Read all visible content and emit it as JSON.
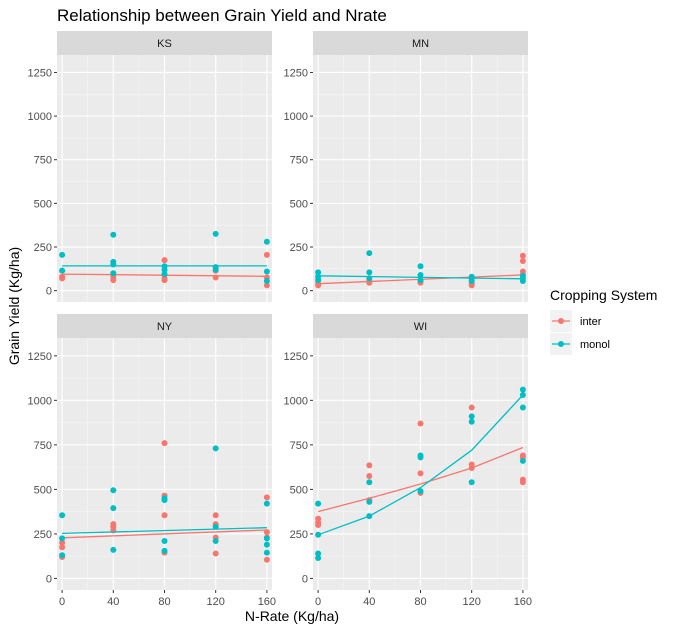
{
  "chart_data": {
    "type": "scatter",
    "title": "Relationship between Grain Yield and Nrate",
    "xlabel": "N-Rate (Kg/ha)",
    "ylabel": "Grain Yield (Kg/ha)",
    "x_ticks": [
      0,
      40,
      80,
      120,
      160
    ],
    "y_ticks": [
      0,
      250,
      500,
      750,
      1000,
      1250
    ],
    "xlim": [
      -4,
      164
    ],
    "ylim": [
      -65,
      1350
    ],
    "grid": true,
    "legend": {
      "title": "Cropping System",
      "position": "right",
      "entries": [
        {
          "name": "inter",
          "color": "#F8766D"
        },
        {
          "name": "monol",
          "color": "#00BFC4"
        }
      ]
    },
    "panels": [
      {
        "label": "KS",
        "series": [
          {
            "name": "inter",
            "color": "#F8766D",
            "points": [
              [
                0,
                70
              ],
              [
                0,
                80
              ],
              [
                40,
                60
              ],
              [
                40,
                75
              ],
              [
                40,
                90
              ],
              [
                80,
                60
              ],
              [
                80,
                70
              ],
              [
                80,
                90
              ],
              [
                80,
                175
              ],
              [
                120,
                75
              ],
              [
                120,
                115
              ],
              [
                160,
                30
              ],
              [
                160,
                75
              ],
              [
                160,
                205
              ]
            ],
            "trend": [
              [
                0,
                95
              ],
              [
                160,
                82
              ]
            ]
          },
          {
            "name": "monol",
            "color": "#00BFC4",
            "points": [
              [
                0,
                115
              ],
              [
                0,
                205
              ],
              [
                40,
                100
              ],
              [
                40,
                150
              ],
              [
                40,
                165
              ],
              [
                40,
                320
              ],
              [
                80,
                95
              ],
              [
                80,
                120
              ],
              [
                80,
                140
              ],
              [
                120,
                120
              ],
              [
                120,
                135
              ],
              [
                120,
                325
              ],
              [
                160,
                55
              ],
              [
                160,
                110
              ],
              [
                160,
                280
              ]
            ],
            "trend": [
              [
                0,
                142
              ],
              [
                160,
                142
              ]
            ]
          }
        ]
      },
      {
        "label": "MN",
        "series": [
          {
            "name": "inter",
            "color": "#F8766D",
            "points": [
              [
                0,
                30
              ],
              [
                0,
                40
              ],
              [
                40,
                45
              ],
              [
                40,
                55
              ],
              [
                80,
                45
              ],
              [
                80,
                55
              ],
              [
                120,
                30
              ],
              [
                120,
                40
              ],
              [
                120,
                70
              ],
              [
                160,
                90
              ],
              [
                160,
                110
              ],
              [
                160,
                170
              ],
              [
                160,
                200
              ]
            ],
            "trend": [
              [
                0,
                40
              ],
              [
                160,
                90
              ]
            ]
          },
          {
            "name": "monol",
            "color": "#00BFC4",
            "points": [
              [
                0,
                60
              ],
              [
                0,
                80
              ],
              [
                0,
                105
              ],
              [
                40,
                70
              ],
              [
                40,
                105
              ],
              [
                40,
                215
              ],
              [
                80,
                60
              ],
              [
                80,
                90
              ],
              [
                80,
                140
              ],
              [
                120,
                55
              ],
              [
                120,
                70
              ],
              [
                120,
                80
              ],
              [
                160,
                55
              ],
              [
                160,
                70
              ],
              [
                160,
                85
              ]
            ],
            "trend": [
              [
                0,
                85
              ],
              [
                160,
                68
              ]
            ]
          }
        ]
      },
      {
        "label": "NY",
        "series": [
          {
            "name": "inter",
            "color": "#F8766D",
            "points": [
              [
                0,
                120
              ],
              [
                0,
                175
              ],
              [
                0,
                200
              ],
              [
                40,
                270
              ],
              [
                40,
                290
              ],
              [
                40,
                305
              ],
              [
                80,
                145
              ],
              [
                80,
                355
              ],
              [
                80,
                465
              ],
              [
                80,
                760
              ],
              [
                120,
                140
              ],
              [
                120,
                230
              ],
              [
                120,
                305
              ],
              [
                120,
                355
              ],
              [
                160,
                105
              ],
              [
                160,
                230
              ],
              [
                160,
                260
              ],
              [
                160,
                455
              ]
            ],
            "trend": [
              [
                0,
                228
              ],
              [
                160,
                272
              ]
            ]
          },
          {
            "name": "monol",
            "color": "#00BFC4",
            "points": [
              [
                0,
                130
              ],
              [
                0,
                225
              ],
              [
                0,
                355
              ],
              [
                40,
                160
              ],
              [
                40,
                395
              ],
              [
                40,
                495
              ],
              [
                80,
                155
              ],
              [
                80,
                210
              ],
              [
                80,
                440
              ],
              [
                80,
                450
              ],
              [
                120,
                210
              ],
              [
                120,
                290
              ],
              [
                120,
                730
              ],
              [
                160,
                145
              ],
              [
                160,
                190
              ],
              [
                160,
                225
              ],
              [
                160,
                420
              ]
            ],
            "trend": [
              [
                0,
                253
              ],
              [
                160,
                285
              ]
            ]
          }
        ]
      },
      {
        "label": "WI",
        "series": [
          {
            "name": "inter",
            "color": "#F8766D",
            "points": [
              [
                0,
                300
              ],
              [
                0,
                315
              ],
              [
                0,
                335
              ],
              [
                40,
                440
              ],
              [
                40,
                575
              ],
              [
                40,
                635
              ],
              [
                80,
                480
              ],
              [
                80,
                590
              ],
              [
                80,
                870
              ],
              [
                120,
                620
              ],
              [
                120,
                640
              ],
              [
                120,
                960
              ],
              [
                160,
                540
              ],
              [
                160,
                555
              ],
              [
                160,
                680
              ],
              [
                160,
                690
              ]
            ],
            "trend": [
              [
                0,
                375
              ],
              [
                40,
                450
              ],
              [
                80,
                530
              ],
              [
                120,
                620
              ],
              [
                160,
                735
              ]
            ]
          },
          {
            "name": "monol",
            "color": "#00BFC4",
            "points": [
              [
                0,
                115
              ],
              [
                0,
                140
              ],
              [
                0,
                245
              ],
              [
                0,
                420
              ],
              [
                40,
                350
              ],
              [
                40,
                430
              ],
              [
                40,
                540
              ],
              [
                80,
                490
              ],
              [
                80,
                680
              ],
              [
                80,
                690
              ],
              [
                120,
                540
              ],
              [
                120,
                880
              ],
              [
                120,
                910
              ],
              [
                160,
                660
              ],
              [
                160,
                960
              ],
              [
                160,
                1030
              ],
              [
                160,
                1060
              ]
            ],
            "trend": [
              [
                0,
                245
              ],
              [
                40,
                350
              ],
              [
                80,
                510
              ],
              [
                120,
                720
              ],
              [
                160,
                1030
              ]
            ]
          }
        ]
      }
    ]
  }
}
